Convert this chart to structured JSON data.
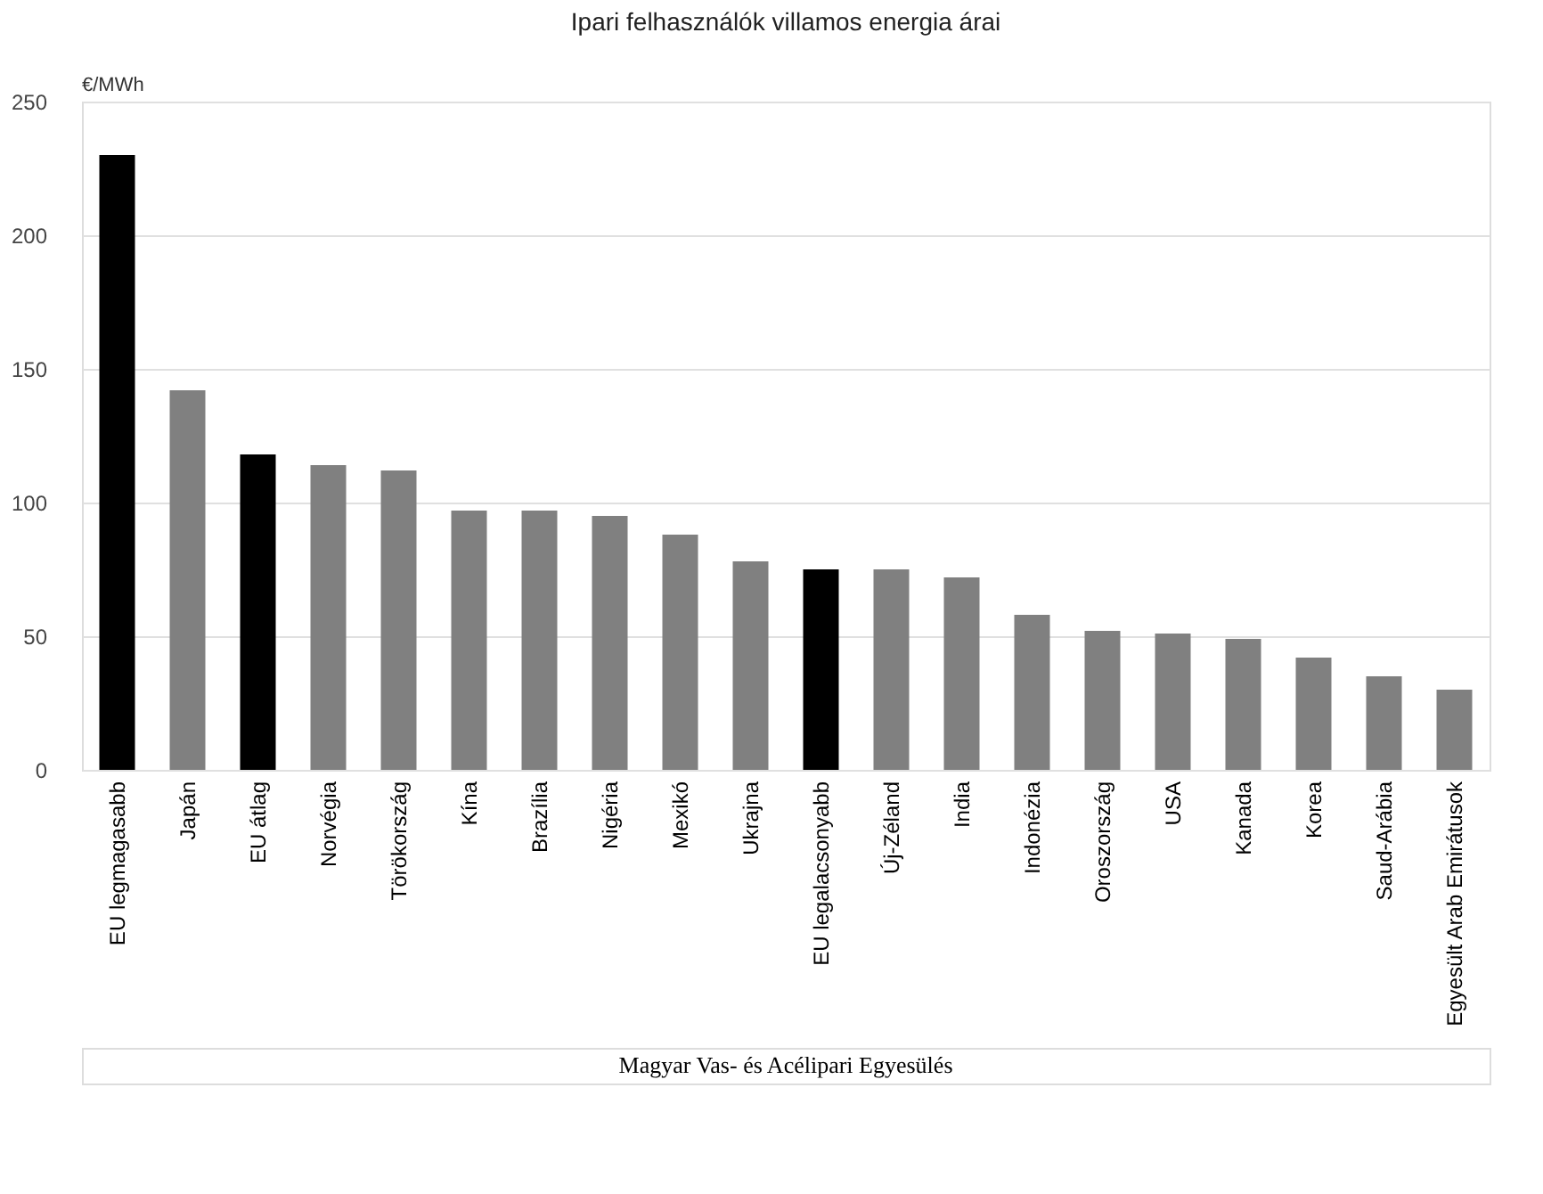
{
  "chart_data": {
    "type": "bar",
    "title": "Ipari felhasználók villamos energia árai",
    "ylabel": "€/MWh",
    "categories": [
      "EU legmagasabb",
      "Japán",
      "EU átlag",
      "Norvégia",
      "Törökország",
      "Kína",
      "Brazília",
      "Nigéria",
      "Mexikó",
      "Ukrajna",
      "EU legalacsonyabb",
      "Új-Zéland",
      "India",
      "Indonézia",
      "Oroszország",
      "USA",
      "Kanada",
      "Korea",
      "Saud-Arábia",
      "Egyesült Arab Emirátusok"
    ],
    "values": [
      230,
      142,
      118,
      114,
      112,
      97,
      97,
      95,
      88,
      78,
      75,
      75,
      72,
      58,
      52,
      51,
      49,
      42,
      35,
      30
    ],
    "colors": [
      "#000000",
      "#808080",
      "#000000",
      "#808080",
      "#808080",
      "#808080",
      "#808080",
      "#808080",
      "#808080",
      "#808080",
      "#000000",
      "#808080",
      "#808080",
      "#808080",
      "#808080",
      "#808080",
      "#808080",
      "#808080",
      "#808080",
      "#808080"
    ],
    "ylim": [
      0,
      250
    ],
    "yticks": [
      0,
      50,
      100,
      150,
      200,
      250
    ],
    "grid": "y",
    "annotations": [
      "Magyar Vas- és Acélipari Egyesülés"
    ]
  }
}
